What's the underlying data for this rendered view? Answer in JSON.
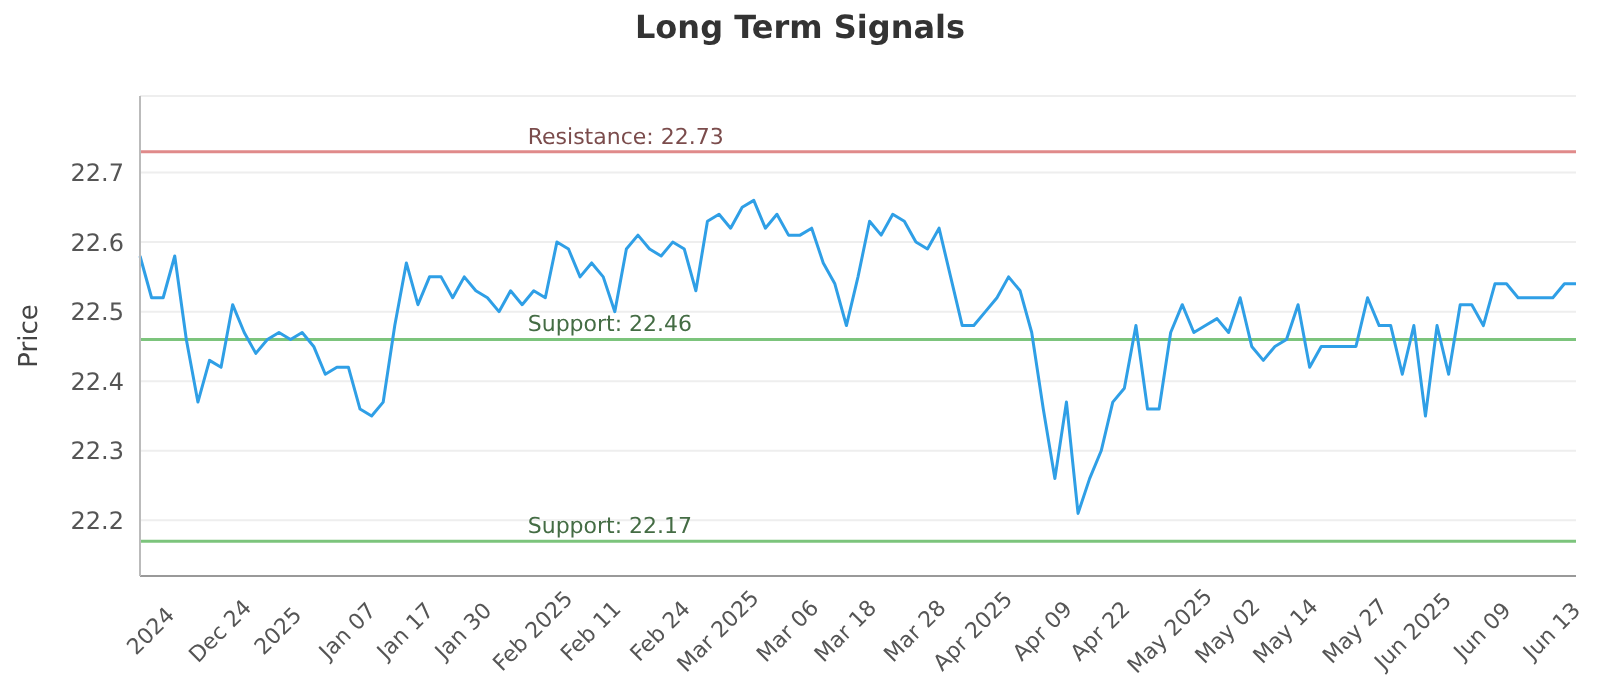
{
  "chart_data": {
    "type": "line",
    "title": "Long Term Signals",
    "ylabel": "Price",
    "categories": [
      null,
      "2024",
      null,
      null,
      null,
      null,
      null,
      "Dec 24",
      null,
      null,
      null,
      null,
      "2025",
      null,
      null,
      null,
      null,
      null,
      "Jan 07",
      null,
      null,
      null,
      null,
      "Jan 17",
      null,
      null,
      null,
      null,
      "Jan 30",
      null,
      null,
      null,
      null,
      null,
      "Feb 2025",
      null,
      null,
      null,
      null,
      "Feb 11",
      null,
      null,
      null,
      null,
      null,
      "Feb 24",
      null,
      null,
      null,
      null,
      "Mar 2025",
      null,
      null,
      null,
      null,
      null,
      "Mar 06",
      null,
      null,
      null,
      null,
      "Mar 18",
      null,
      null,
      null,
      null,
      null,
      "Mar 28",
      null,
      null,
      null,
      null,
      "Apr 2025",
      null,
      null,
      null,
      null,
      null,
      "Apr 09",
      null,
      null,
      null,
      null,
      "Apr 22",
      null,
      null,
      null,
      null,
      null,
      "May 2025",
      null,
      null,
      null,
      null,
      "May 02",
      null,
      null,
      null,
      null,
      "May 14",
      null,
      null,
      null,
      null,
      null,
      "May 27",
      null,
      null,
      null,
      null,
      "Jun 2025",
      null,
      null,
      null,
      null,
      null,
      "Jun 09",
      null,
      null,
      null,
      null,
      null,
      "Jun 13",
      null,
      null
    ],
    "series": [
      {
        "color": "#2f9fe6",
        "values": [
          22.58,
          22.52,
          22.52,
          22.58,
          22.46,
          22.37,
          22.43,
          22.42,
          22.51,
          22.47,
          22.44,
          22.46,
          22.47,
          22.46,
          22.47,
          22.45,
          22.41,
          22.42,
          22.42,
          22.36,
          22.35,
          22.37,
          22.48,
          22.57,
          22.51,
          22.55,
          22.55,
          22.52,
          22.55,
          22.53,
          22.52,
          22.5,
          22.53,
          22.51,
          22.53,
          22.52,
          22.6,
          22.59,
          22.55,
          22.57,
          22.55,
          22.5,
          22.59,
          22.61,
          22.59,
          22.58,
          22.6,
          22.59,
          22.53,
          22.63,
          22.64,
          22.62,
          22.65,
          22.66,
          22.62,
          22.64,
          22.61,
          22.61,
          22.62,
          22.57,
          22.54,
          22.48,
          22.55,
          22.63,
          22.61,
          22.64,
          22.63,
          22.6,
          22.59,
          22.62,
          22.55,
          22.48,
          22.48,
          22.5,
          22.52,
          22.55,
          22.53,
          22.47,
          22.36,
          22.26,
          22.37,
          22.21,
          22.26,
          22.3,
          22.37,
          22.39,
          22.48,
          22.36,
          22.36,
          22.47,
          22.51,
          22.47,
          22.48,
          22.49,
          22.47,
          22.52,
          22.45,
          22.43,
          22.45,
          22.46,
          22.51,
          22.42,
          22.45,
          22.45,
          22.45,
          22.45,
          22.52,
          22.48,
          22.48,
          22.41,
          22.48,
          22.35,
          22.48,
          22.41,
          22.51,
          22.51,
          22.48,
          22.54,
          22.54,
          22.52,
          22.52,
          22.52,
          22.52,
          22.54,
          22.54
        ]
      }
    ],
    "ylim": [
      22.12,
      22.81
    ],
    "yticks": [
      22.2,
      22.3,
      22.4,
      22.5,
      22.6,
      22.7
    ],
    "grid": "y",
    "marker": "none",
    "line_style": "solid",
    "ref_lines": [
      {
        "axis": "y",
        "value": 22.73,
        "label": "Resistance: 22.73",
        "color": "#e08a8a"
      },
      {
        "axis": "y",
        "value": 22.46,
        "label": "Support: 22.46",
        "color": "#7cc47c"
      },
      {
        "axis": "y",
        "value": 22.17,
        "label": "Support: 22.17",
        "color": "#7cc47c"
      }
    ]
  }
}
